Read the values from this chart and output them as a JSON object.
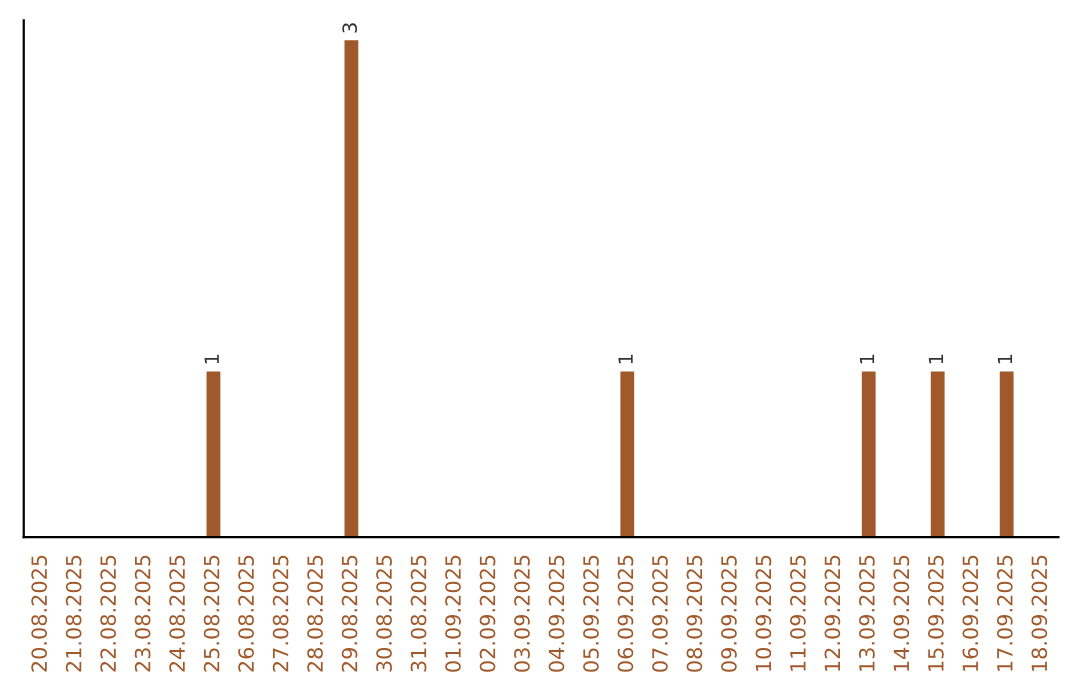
{
  "chart_data": {
    "type": "bar",
    "categories": [
      "20.08.2025",
      "21.08.2025",
      "22.08.2025",
      "23.08.2025",
      "24.08.2025",
      "25.08.2025",
      "26.08.2025",
      "27.08.2025",
      "28.08.2025",
      "29.08.2025",
      "30.08.2025",
      "31.08.2025",
      "01.09.2025",
      "02.09.2025",
      "03.09.2025",
      "04.09.2025",
      "05.09.2025",
      "06.09.2025",
      "07.09.2025",
      "08.09.2025",
      "09.09.2025",
      "10.09.2025",
      "11.09.2025",
      "12.09.2025",
      "13.09.2025",
      "14.09.2025",
      "15.09.2025",
      "16.09.2025",
      "17.09.2025",
      "18.09.2025"
    ],
    "values": [
      0,
      0,
      0,
      0,
      0,
      1,
      0,
      0,
      0,
      3,
      0,
      0,
      0,
      0,
      0,
      0,
      0,
      1,
      0,
      0,
      0,
      0,
      0,
      0,
      1,
      0,
      1,
      0,
      1,
      0
    ],
    "value_labels": [
      null,
      null,
      null,
      null,
      null,
      "1",
      null,
      null,
      null,
      "3",
      null,
      null,
      null,
      null,
      null,
      null,
      null,
      "1",
      null,
      null,
      null,
      null,
      null,
      null,
      "1",
      null,
      "1",
      null,
      "1",
      null
    ],
    "color": "#a0592b",
    "ylim": [
      0,
      3.12
    ],
    "tick_labels": "x",
    "grid": false
  }
}
